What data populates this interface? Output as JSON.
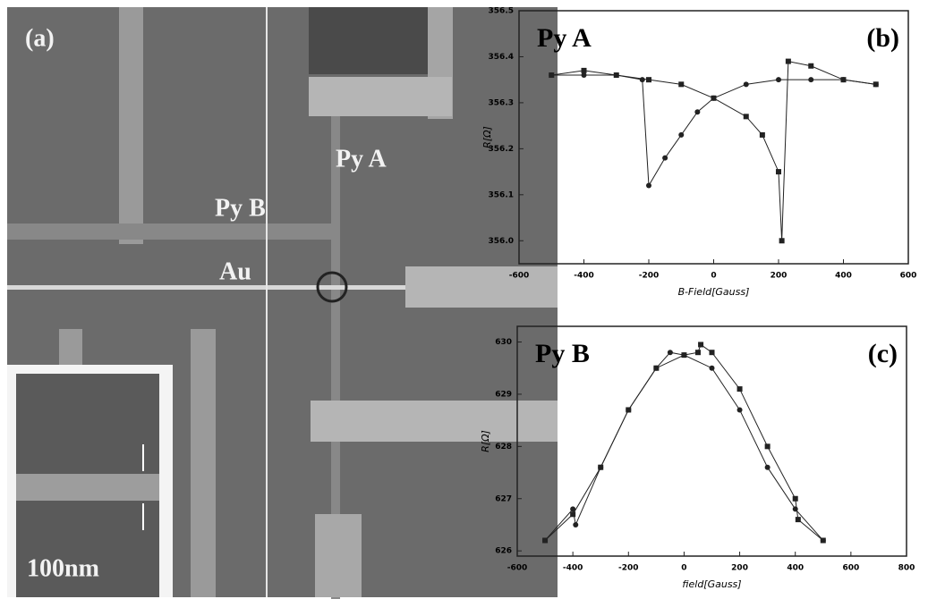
{
  "image": {
    "panel_label": "(a)",
    "labels": [
      "Py A",
      "Py B",
      "Au"
    ],
    "scale_bar": "100nm"
  },
  "chart_data": [
    {
      "type": "line",
      "annotation": "Py A",
      "panel_label": "(b)",
      "x_label": "B-Field[Gauss]",
      "y_label": "R[Ω]",
      "xlim": [
        -600,
        600
      ],
      "xticks": [
        -600,
        -400,
        -200,
        0,
        200,
        400,
        600
      ],
      "ylim": [
        355.95,
        356.5
      ],
      "yticks": [
        {
          "value": 356,
          "label": "356.0"
        },
        356.1,
        356.2,
        356.3,
        356.4,
        356.5
      ],
      "series": [
        {
          "color": "#222222",
          "marker": "circle",
          "x": [
            -500,
            -400,
            -300,
            -220,
            -200,
            -150,
            -100,
            -50,
            0,
            100,
            200,
            300,
            400,
            500
          ],
          "values": [
            356.36,
            356.36,
            356.36,
            356.35,
            356.12,
            356.18,
            356.23,
            356.28,
            356.31,
            356.34,
            356.35,
            356.35,
            356.35,
            356.34
          ]
        },
        {
          "color": "#222222",
          "marker": "square",
          "x": [
            -500,
            -400,
            -300,
            -200,
            -100,
            0,
            100,
            150,
            200,
            210,
            230,
            300,
            400,
            500
          ],
          "values": [
            356.36,
            356.37,
            356.36,
            356.35,
            356.34,
            356.31,
            356.27,
            356.23,
            356.15,
            356.0,
            356.39,
            356.38,
            356.35,
            356.34
          ]
        }
      ]
    },
    {
      "type": "line",
      "annotation": "Py B",
      "panel_label": "(c)",
      "x_label": "field[Gauss]",
      "y_label": "R[Ω]",
      "xlim": [
        -600,
        800
      ],
      "xticks": [
        -600,
        -400,
        -200,
        0,
        200,
        400,
        600,
        800
      ],
      "ylim": [
        625.9,
        630.3
      ],
      "yticks": [
        626,
        627,
        628,
        629,
        630
      ],
      "series": [
        {
          "color": "#222222",
          "marker": "circle",
          "x": [
            -500,
            -400,
            -390,
            -300,
            -200,
            -100,
            -50,
            0,
            100,
            200,
            300,
            400,
            500
          ],
          "values": [
            626.2,
            626.8,
            626.5,
            627.6,
            628.7,
            629.5,
            629.8,
            629.75,
            629.5,
            628.7,
            627.6,
            626.8,
            626.2
          ]
        },
        {
          "color": "#222222",
          "marker": "square",
          "x": [
            -500,
            -400,
            -300,
            -200,
            -100,
            0,
            50,
            60,
            100,
            200,
            300,
            400,
            410,
            500
          ],
          "values": [
            626.2,
            626.7,
            627.6,
            628.7,
            629.5,
            629.75,
            629.8,
            629.95,
            629.8,
            629.1,
            628.0,
            627.0,
            626.6,
            626.2
          ]
        }
      ]
    }
  ]
}
